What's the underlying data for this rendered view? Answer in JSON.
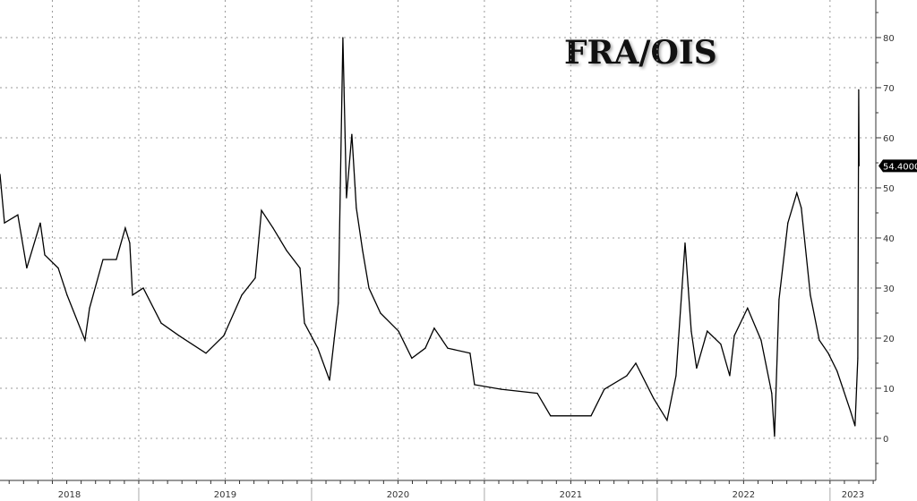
{
  "chart_data": {
    "type": "line",
    "title": "FRA/OIS",
    "xlabel": "",
    "ylabel": "",
    "x_tick_labels": [
      "2018",
      "2019",
      "2020",
      "2021",
      "2022",
      "2023"
    ],
    "y_ticks": [
      0,
      10,
      20,
      30,
      40,
      50,
      60,
      70,
      80
    ],
    "xlim": [
      2018.197,
      2023.265
    ],
    "ylim": [
      -8.4,
      87.5
    ],
    "y_axis_side": "right",
    "grid": true,
    "last_value_label": "54.4000",
    "line_color": "#000000",
    "series": [
      {
        "x": [
          2018.197,
          2018.223,
          2018.3,
          2018.352,
          2018.43,
          2018.456,
          2018.534,
          2018.585,
          2018.689,
          2018.715,
          2018.793,
          2018.87,
          2018.922,
          2018.948,
          2018.964,
          2019.026,
          2019.13,
          2019.233,
          2019.389,
          2019.492,
          2019.596,
          2019.674,
          2019.71,
          2019.777,
          2019.855,
          2019.933,
          2019.959,
          2020.036,
          2020.104,
          2020.155,
          2020.181,
          2020.202,
          2020.233,
          2020.259,
          2020.295,
          2020.332,
          2020.399,
          2020.503,
          2020.58,
          2020.658,
          2020.71,
          2020.788,
          2020.917,
          2020.943,
          2021.098,
          2021.306,
          2021.383,
          2021.617,
          2021.694,
          2021.824,
          2021.876,
          2021.979,
          2022.057,
          2022.109,
          2022.161,
          2022.197,
          2022.228,
          2022.29,
          2022.368,
          2022.42,
          2022.446,
          2022.523,
          2022.601,
          2022.663,
          2022.679,
          2022.705,
          2022.756,
          2022.808,
          2022.834,
          2022.886,
          2022.938,
          2022.99,
          2023.041,
          2023.119,
          2023.145,
          2023.161,
          2023.166,
          2023.168
        ],
        "y": [
          52.7,
          43,
          44.6,
          34,
          43,
          36.6,
          34,
          28.6,
          19.6,
          26,
          35.7,
          35.7,
          42,
          39,
          28.6,
          30,
          23,
          20.5,
          17,
          20.5,
          28.6,
          32,
          45.5,
          42,
          37.5,
          34,
          23,
          18,
          11.6,
          27,
          80,
          48,
          60.7,
          46,
          37.5,
          30,
          25,
          21.4,
          16,
          18,
          22,
          18,
          17,
          10.7,
          9.8,
          9,
          4.5,
          4.5,
          9.8,
          12.5,
          15,
          8,
          3.6,
          12.5,
          39,
          21.4,
          14,
          21.4,
          18.8,
          12.5,
          20.5,
          26,
          19.6,
          9,
          0.4,
          27.7,
          43,
          49,
          46,
          28.6,
          19.6,
          17,
          13.4,
          5.4,
          2.5,
          16,
          69.6,
          54.4
        ]
      }
    ]
  }
}
